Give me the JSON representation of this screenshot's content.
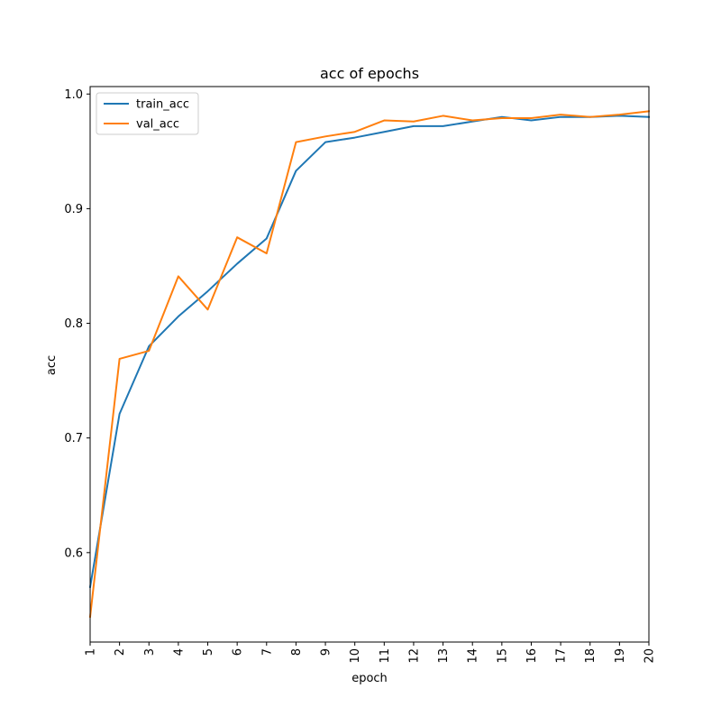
{
  "chart_data": {
    "type": "line",
    "title": "acc of epochs",
    "xlabel": "epoch",
    "ylabel": "acc",
    "x": [
      1,
      2,
      3,
      4,
      5,
      6,
      7,
      8,
      9,
      10,
      11,
      12,
      13,
      14,
      15,
      16,
      17,
      18,
      19,
      20
    ],
    "xlim": [
      1,
      20
    ],
    "ylim": [
      0.522,
      1.0065
    ],
    "xticks": [
      "1",
      "2",
      "3",
      "4",
      "5",
      "6",
      "7",
      "8",
      "9",
      "10",
      "11",
      "12",
      "13",
      "14",
      "15",
      "16",
      "17",
      "18",
      "19",
      "20"
    ],
    "yticks": [
      0.6,
      0.7,
      0.8,
      0.9,
      1.0
    ],
    "ytick_labels": [
      "0.6",
      "0.7",
      "0.8",
      "0.9",
      "1.0"
    ],
    "grid": false,
    "legend_position": "top-left",
    "series": [
      {
        "name": "train_acc",
        "color": "#1f77b4",
        "values": [
          0.57,
          0.721,
          0.78,
          0.806,
          0.828,
          0.852,
          0.874,
          0.933,
          0.958,
          0.962,
          0.967,
          0.972,
          0.972,
          0.976,
          0.98,
          0.977,
          0.98,
          0.98,
          0.981,
          0.98
        ]
      },
      {
        "name": "val_acc",
        "color": "#ff7f0e",
        "values": [
          0.544,
          0.769,
          0.776,
          0.841,
          0.812,
          0.875,
          0.861,
          0.958,
          0.963,
          0.967,
          0.977,
          0.976,
          0.981,
          0.977,
          0.979,
          0.979,
          0.982,
          0.98,
          0.982,
          0.985
        ]
      }
    ]
  }
}
